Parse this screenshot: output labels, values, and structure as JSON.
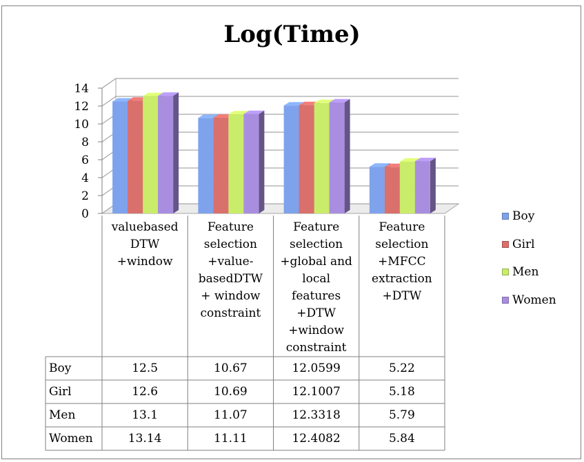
{
  "chart_data": {
    "type": "bar",
    "title": "Log(Time)",
    "categories": [
      "valuebased DTW +window",
      "Feature selection +value-basedDTW + window constraint",
      "Feature selection +global and local features +DTW +window constraint",
      "Feature selection +MFCC extraction +DTW"
    ],
    "category_lines": [
      [
        "valuebased",
        "DTW",
        "+window"
      ],
      [
        "Feature",
        "selection",
        "+value-",
        "basedDTW",
        "+ window",
        "constraint"
      ],
      [
        "Feature",
        "selection",
        "+global and",
        "local",
        "features",
        "+DTW",
        "+window",
        "constraint"
      ],
      [
        "Feature",
        "selection",
        "+MFCC",
        "extraction",
        "+DTW"
      ]
    ],
    "series": [
      {
        "name": "Boy",
        "values": [
          12.5,
          10.67,
          12.0599,
          5.22
        ],
        "display": [
          "12.5",
          "10.67",
          "12.0599",
          "5.22"
        ]
      },
      {
        "name": "Girl",
        "values": [
          12.6,
          10.69,
          12.1007,
          5.18
        ],
        "display": [
          "12.6",
          "10.69",
          "12.1007",
          "5.18"
        ]
      },
      {
        "name": "Men",
        "values": [
          13.1,
          11.07,
          12.3318,
          5.79
        ],
        "display": [
          "13.1",
          "11.07",
          "12.3318",
          "5.79"
        ]
      },
      {
        "name": "Women",
        "values": [
          13.14,
          11.11,
          12.4082,
          5.84
        ],
        "display": [
          "13.14",
          "11.11",
          "12.4082",
          "5.84"
        ]
      }
    ],
    "colors": [
      "#7ea3ec",
      "#d9706c",
      "#c9ec6a",
      "#a98ee0"
    ],
    "ylim": [
      0,
      14
    ],
    "yticks": [
      0,
      2,
      4,
      6,
      8,
      10,
      12,
      14
    ],
    "grid": true,
    "legend_position": "right",
    "style": "3d-clustered-column-with-data-table"
  }
}
